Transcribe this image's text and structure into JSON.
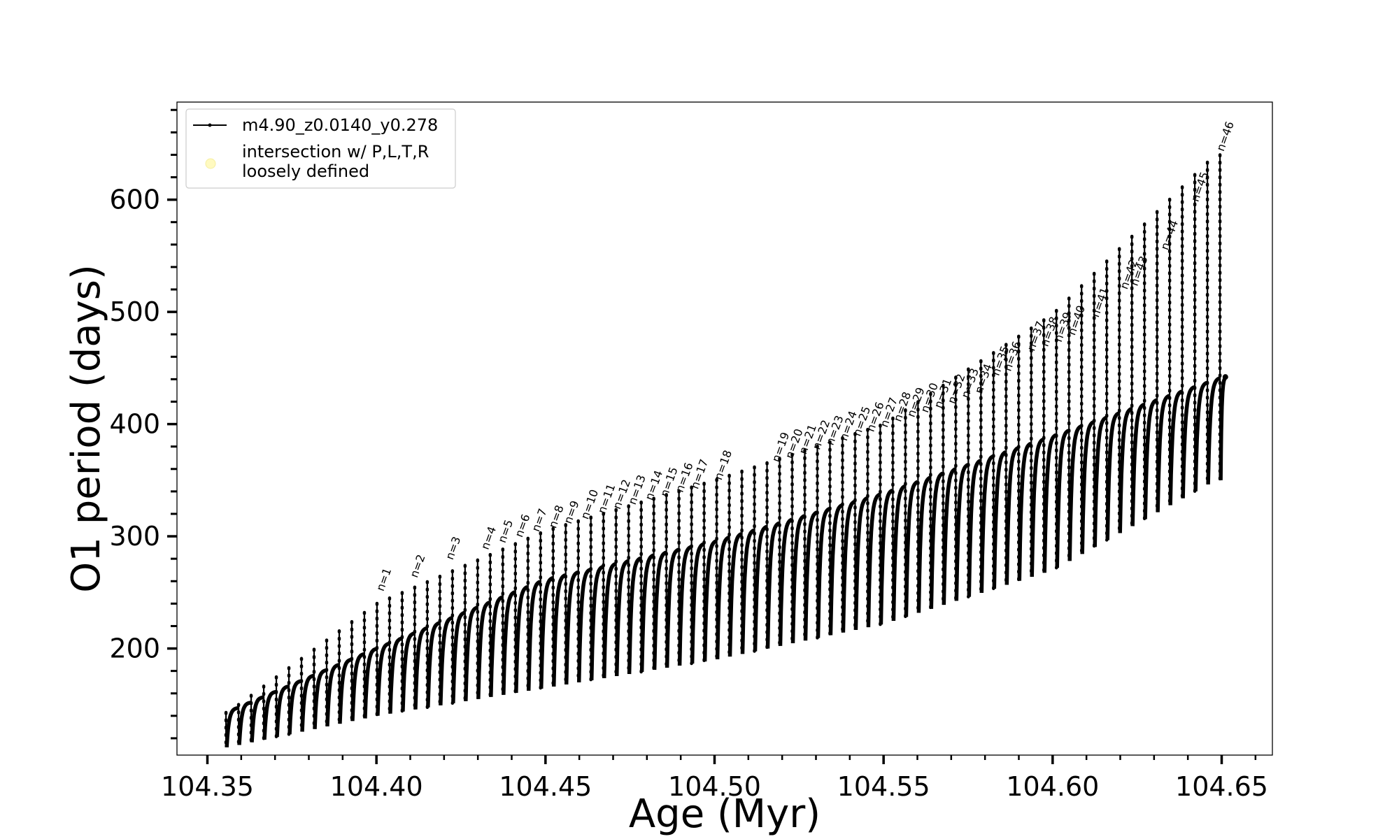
{
  "chart_data": {
    "type": "line",
    "title": "",
    "xlabel": "Age (Myr)",
    "ylabel": "O1 period (days)",
    "xlim": [
      104.341,
      104.665
    ],
    "ylim": [
      105,
      687
    ],
    "xticks": [
      104.35,
      104.4,
      104.45,
      104.5,
      104.55,
      104.6,
      104.65
    ],
    "xtick_labels": [
      "104.35",
      "104.40",
      "104.45",
      "104.50",
      "104.55",
      "104.60",
      "104.65"
    ],
    "yticks": [
      200,
      300,
      400,
      500,
      600
    ],
    "ytick_labels": [
      "200",
      "300",
      "400",
      "500",
      "600"
    ],
    "grid": false,
    "legend_position": "upper-left",
    "series": [
      {
        "name": "m4.90_z0.0140_y0.278",
        "color": "#000000",
        "marker": "small-dot",
        "cycles": {
          "start_age": 104.3555,
          "end_age": 104.6495,
          "count": 80,
          "envelope_top": [
            [
              104.356,
              143
            ],
            [
              104.4,
              200
            ],
            [
              104.45,
              262
            ],
            [
              104.5,
              296
            ],
            [
              104.55,
              339
            ],
            [
              104.6,
              390
            ],
            [
              104.65,
              442
            ]
          ],
          "envelope_bottom": [
            [
              104.356,
              112
            ],
            [
              104.4,
              140
            ],
            [
              104.45,
              165
            ],
            [
              104.5,
              190
            ],
            [
              104.55,
              222
            ],
            [
              104.6,
              270
            ],
            [
              104.648,
              350
            ]
          ],
          "spike_peak": [
            [
              104.356,
              143
            ],
            [
              104.4,
              240
            ],
            [
              104.45,
              305
            ],
            [
              104.5,
              350
            ],
            [
              104.55,
              400
            ],
            [
              104.6,
              498
            ],
            [
              104.648,
              640
            ]
          ]
        }
      },
      {
        "name": "intersection w/ P,L,T,R loosely defined",
        "color": "#fffac0",
        "marker": "circle",
        "points": []
      }
    ],
    "legend": [
      {
        "label": "m4.90_z0.0140_y0.278",
        "style": "line-dot"
      },
      {
        "label_lines": [
          "intersection w/ P,L,T,R",
          "loosely defined"
        ],
        "style": "pale-yellow-circle"
      }
    ],
    "annotations": [
      {
        "text": "n=1",
        "x": 104.401,
        "y": 248
      },
      {
        "text": "n=2",
        "x": 104.411,
        "y": 260
      },
      {
        "text": "n=3",
        "x": 104.4215,
        "y": 276
      },
      {
        "text": "n=4",
        "x": 104.432,
        "y": 285
      },
      {
        "text": "n=5",
        "x": 104.437,
        "y": 291
      },
      {
        "text": "n=6",
        "x": 104.442,
        "y": 296
      },
      {
        "text": "n=7",
        "x": 104.447,
        "y": 301
      },
      {
        "text": "n=8",
        "x": 104.452,
        "y": 304
      },
      {
        "text": "n=9",
        "x": 104.4565,
        "y": 308
      },
      {
        "text": "n=10",
        "x": 104.4615,
        "y": 312
      },
      {
        "text": "n=11",
        "x": 104.4665,
        "y": 317
      },
      {
        "text": "n=12",
        "x": 104.471,
        "y": 321
      },
      {
        "text": "n=13",
        "x": 104.4755,
        "y": 325
      },
      {
        "text": "n=14",
        "x": 104.4805,
        "y": 329
      },
      {
        "text": "n=15",
        "x": 104.485,
        "y": 332
      },
      {
        "text": "n=16",
        "x": 104.4895,
        "y": 336
      },
      {
        "text": "n=17",
        "x": 104.494,
        "y": 339
      },
      {
        "text": "n=18",
        "x": 104.501,
        "y": 347
      },
      {
        "text": "n=19",
        "x": 104.518,
        "y": 363
      },
      {
        "text": "n=20",
        "x": 104.522,
        "y": 366
      },
      {
        "text": "n=21",
        "x": 104.526,
        "y": 370
      },
      {
        "text": "n=22",
        "x": 104.53,
        "y": 374
      },
      {
        "text": "n=23",
        "x": 104.534,
        "y": 378
      },
      {
        "text": "n=24",
        "x": 104.538,
        "y": 382
      },
      {
        "text": "n=25",
        "x": 104.542,
        "y": 386
      },
      {
        "text": "n=26",
        "x": 104.546,
        "y": 390
      },
      {
        "text": "n=27",
        "x": 104.55,
        "y": 394
      },
      {
        "text": "n=28",
        "x": 104.554,
        "y": 399
      },
      {
        "text": "n=29",
        "x": 104.558,
        "y": 403
      },
      {
        "text": "n=30",
        "x": 104.562,
        "y": 407
      },
      {
        "text": "n=31",
        "x": 104.566,
        "y": 411
      },
      {
        "text": "n=32",
        "x": 104.57,
        "y": 415
      },
      {
        "text": "n=33",
        "x": 104.574,
        "y": 420
      },
      {
        "text": "n=34",
        "x": 104.578,
        "y": 424
      },
      {
        "text": "n=35",
        "x": 104.583,
        "y": 440
      },
      {
        "text": "n=36",
        "x": 104.5865,
        "y": 444
      },
      {
        "text": "n=37",
        "x": 104.5935,
        "y": 462
      },
      {
        "text": "n=38",
        "x": 104.5975,
        "y": 466
      },
      {
        "text": "n=39",
        "x": 104.6015,
        "y": 470
      },
      {
        "text": "n=40",
        "x": 104.6055,
        "y": 476
      },
      {
        "text": "n=41",
        "x": 104.6125,
        "y": 492
      },
      {
        "text": "n=42",
        "x": 104.621,
        "y": 517
      },
      {
        "text": "n=43",
        "x": 104.624,
        "y": 520
      },
      {
        "text": "n=44",
        "x": 104.633,
        "y": 552
      },
      {
        "text": "n=45",
        "x": 104.642,
        "y": 595
      },
      {
        "text": "n=46",
        "x": 104.6495,
        "y": 640
      }
    ]
  }
}
